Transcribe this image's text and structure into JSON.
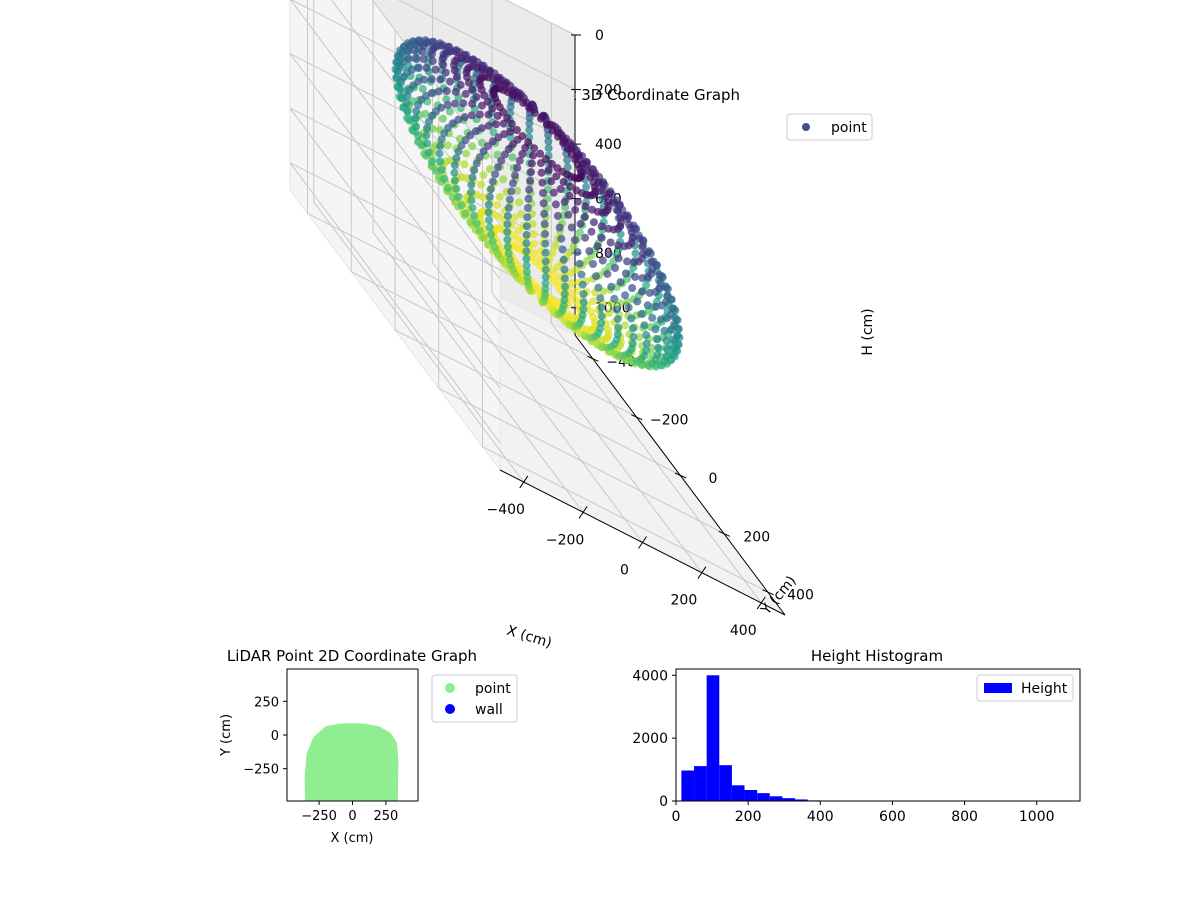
{
  "chart_data": [
    {
      "type": "scatter",
      "title": "LiDAR Point 3D Coordinate Graph",
      "xlabel": "X (cm)",
      "ylabel": "Y (cm)",
      "zlabel": "H (cm)",
      "x_ticks": [
        -400,
        -200,
        0,
        200,
        400
      ],
      "y_ticks": [
        -400,
        -200,
        0,
        200,
        400
      ],
      "z_ticks": [
        0,
        200,
        400,
        600,
        800,
        1000
      ],
      "x_tick_labels": [
        "−400",
        "−200",
        "0",
        "200",
        "400"
      ],
      "y_tick_labels": [
        "−400",
        "−200",
        "0",
        "200",
        "400"
      ],
      "z_tick_labels": [
        "0",
        "200",
        "400",
        "600",
        "800",
        "1000"
      ],
      "xlim": [
        -480,
        480
      ],
      "ylim": [
        -480,
        480
      ],
      "zlim": [
        0,
        1100
      ],
      "z_inverted": true,
      "grid": true,
      "colormap": "viridis",
      "legend": {
        "placement": "top-right",
        "entries": [
          {
            "label": "point",
            "color": "#3b528b"
          }
        ]
      },
      "shape": {
        "x_radius": 330,
        "y_radius": 470,
        "h_center": 370,
        "h_radius": 270
      }
    },
    {
      "type": "scatter",
      "title": "LiDAR Point 2D Coordinate Graph",
      "xlabel": "X (cm)",
      "ylabel": "Y (cm)",
      "xlim": [
        -490,
        490
      ],
      "ylim": [
        -490,
        490
      ],
      "x_ticks": [
        -250,
        0,
        250
      ],
      "y_ticks": [
        250,
        0,
        -250
      ],
      "x_tick_labels": [
        "−250",
        "0",
        "250"
      ],
      "y_tick_labels": [
        "250",
        "0",
        "−250"
      ],
      "grid": false,
      "legend": {
        "placement": "outside-right",
        "entries": [
          {
            "label": "point",
            "color": "#90ee90"
          },
          {
            "label": "wall",
            "color": "#0000ff"
          }
        ]
      },
      "series": [
        {
          "name": "point",
          "color": "#90ee90",
          "outline": [
            [
              -350,
              -490
            ],
            [
              -355,
              -330
            ],
            [
              -340,
              -140
            ],
            [
              -290,
              -20
            ],
            [
              -200,
              60
            ],
            [
              -100,
              80
            ],
            [
              0,
              85
            ],
            [
              100,
              80
            ],
            [
              200,
              60
            ],
            [
              280,
              15
            ],
            [
              330,
              -60
            ],
            [
              340,
              -200
            ],
            [
              335,
              -490
            ]
          ]
        },
        {
          "name": "wall",
          "color": "#0000ff",
          "points": []
        }
      ]
    },
    {
      "type": "bar",
      "title": "Height Histogram",
      "xlabel": "",
      "ylabel": "",
      "xlim": [
        0,
        1120
      ],
      "ylim": [
        0,
        4200
      ],
      "x_ticks": [
        0,
        200,
        400,
        600,
        800,
        1000
      ],
      "y_ticks": [
        0,
        2000,
        4000
      ],
      "x_tick_labels": [
        "0",
        "200",
        "400",
        "600",
        "800",
        "1000"
      ],
      "y_tick_labels": [
        "0",
        "2000",
        "4000"
      ],
      "bin_width": 35,
      "bin_start": 15,
      "values": [
        970,
        1110,
        4000,
        1140,
        500,
        350,
        250,
        150,
        90,
        50,
        20,
        10,
        5,
        5,
        5,
        3,
        3,
        2,
        2,
        2,
        2,
        2,
        2,
        1,
        1,
        1,
        1,
        1,
        1,
        1
      ],
      "color": "#0000ff",
      "grid": false,
      "legend": {
        "placement": "top-right",
        "entries": [
          {
            "label": "Height",
            "color": "#0000ff"
          }
        ]
      }
    }
  ]
}
